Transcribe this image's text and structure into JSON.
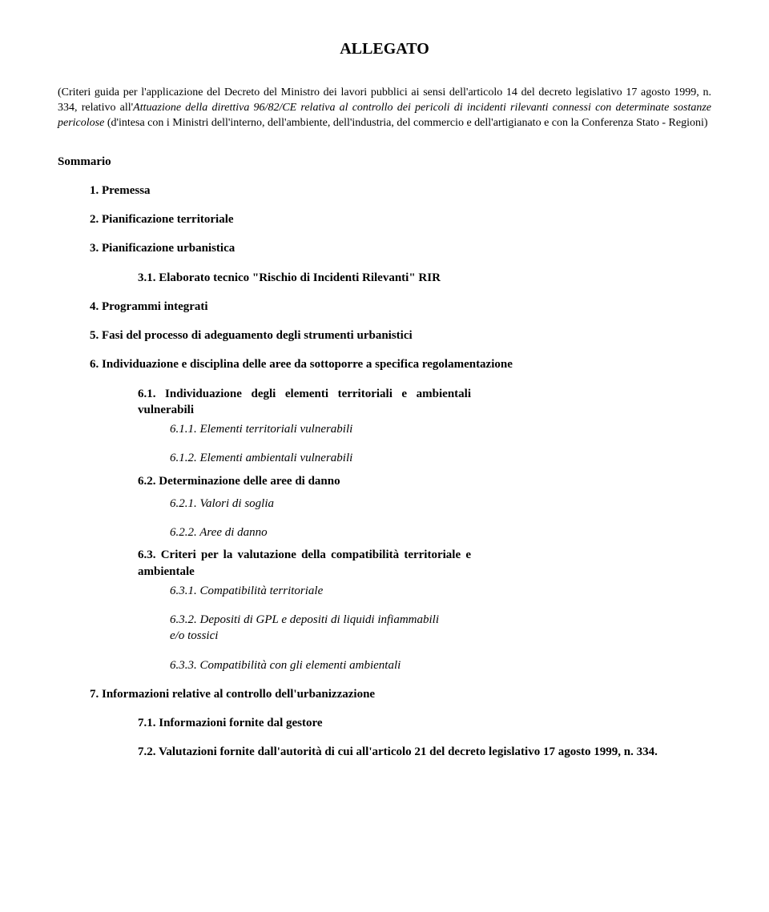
{
  "title": "ALLEGATO",
  "subtitle_prefix": "(Criteri guida per l'applicazione del Decreto del Ministro dei lavori pubblici ai sensi dell'articolo 14 del decreto legislativo 17 agosto 1999, n. 334, relativo all'",
  "subtitle_italic": "Attuazione della direttiva 96/82/CE relativa al controllo dei pericoli di incidenti rilevanti connessi con determinate sostanze pericolose",
  "subtitle_suffix": " (d'intesa con i Ministri dell'interno, dell'ambiente, dell'industria, del commercio e dell'artigianato e con la Conferenza Stato - Regioni)",
  "sommario": "Sommario",
  "items": {
    "s1": "1. Premessa",
    "s2": "2. Pianificazione territoriale",
    "s3": "3. Pianificazione urbanistica",
    "s3_1": "3.1. Elaborato tecnico \"Rischio di Incidenti Rilevanti\" RIR",
    "s4": "4. Programmi integrati",
    "s5": "5. Fasi del processo di adeguamento degli strumenti urbanistici",
    "s6": "6. Individuazione e disciplina delle aree da sottoporre a specifica regolamentazione",
    "s6_1": "6.1. Individuazione degli elementi territoriali e ambientali vulnerabili",
    "s6_1_1": "6.1.1. Elementi territoriali vulnerabili",
    "s6_1_2": "6.1.2. Elementi ambientali vulnerabili",
    "s6_2": "6.2. Determinazione delle aree di danno",
    "s6_2_1": "6.2.1. Valori di soglia",
    "s6_2_2": "6.2.2. Aree di danno",
    "s6_3": "6.3. Criteri per la valutazione della compatibilità territoriale e ambientale",
    "s6_3_1": "6.3.1. Compatibilità territoriale",
    "s6_3_2": "6.3.2. Depositi di GPL e depositi di liquidi infiammabili e/o tossici",
    "s6_3_3": "6.3.3. Compatibilità con gli elementi ambientali",
    "s7": "7. Informazioni relative al controllo dell'urbanizzazione",
    "s7_1": "7.1. Informazioni fornite dal gestore",
    "s7_2": "7.2. Valutazioni fornite dall'autorità di cui all'articolo 21 del decreto legislativo 17 agosto 1999, n. 334."
  }
}
